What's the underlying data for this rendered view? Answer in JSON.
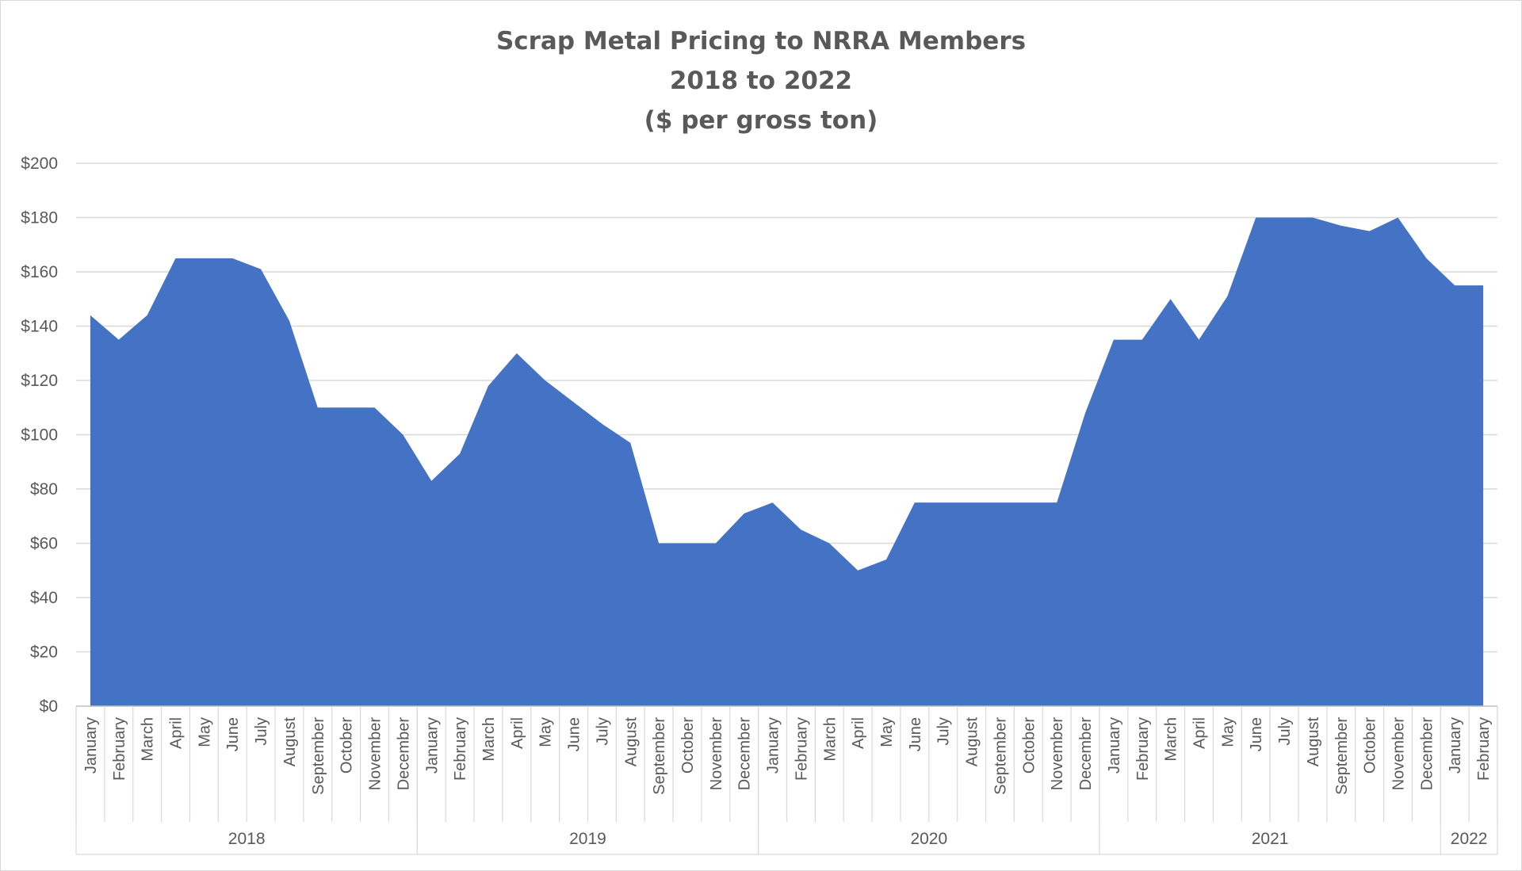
{
  "chart_data": {
    "type": "area",
    "title_lines": [
      "Scrap Metal Pricing to NRRA Members",
      "2018 to 2022",
      "($ per gross ton)"
    ],
    "xlabel": "",
    "ylabel": "",
    "ylim": [
      0,
      200
    ],
    "y_ticks": [
      0,
      20,
      40,
      60,
      80,
      100,
      120,
      140,
      160,
      180,
      200
    ],
    "y_tick_labels": [
      "$0",
      "$20",
      "$40",
      "$60",
      "$80",
      "$100",
      "$120",
      "$140",
      "$160",
      "$180",
      "$200"
    ],
    "grid": true,
    "legend": "none",
    "color": "#4472C4",
    "years": [
      {
        "label": "2018",
        "months": [
          "January",
          "February",
          "March",
          "April",
          "May",
          "June",
          "July",
          "August",
          "September",
          "October",
          "November",
          "December"
        ]
      },
      {
        "label": "2019",
        "months": [
          "January",
          "February",
          "March",
          "April",
          "May",
          "June",
          "July",
          "August",
          "September",
          "October",
          "November",
          "December"
        ]
      },
      {
        "label": "2020",
        "months": [
          "January",
          "February",
          "March",
          "April",
          "May",
          "June",
          "July",
          "August",
          "September",
          "October",
          "November",
          "December"
        ]
      },
      {
        "label": "2021",
        "months": [
          "January",
          "February",
          "March",
          "April",
          "May",
          "June",
          "July",
          "August",
          "September",
          "October",
          "November",
          "December"
        ]
      },
      {
        "label": "2022",
        "months": [
          "January",
          "February"
        ]
      }
    ],
    "values": [
      144,
      135,
      144,
      165,
      165,
      165,
      161,
      142,
      110,
      110,
      110,
      100,
      83,
      93,
      118,
      130,
      120,
      112,
      104,
      97,
      60,
      60,
      60,
      71,
      75,
      65,
      60,
      50,
      54,
      75,
      75,
      75,
      75,
      75,
      75,
      108,
      135,
      135,
      150,
      135,
      151,
      180,
      180,
      180,
      177,
      175,
      180,
      165,
      155,
      155
    ]
  }
}
